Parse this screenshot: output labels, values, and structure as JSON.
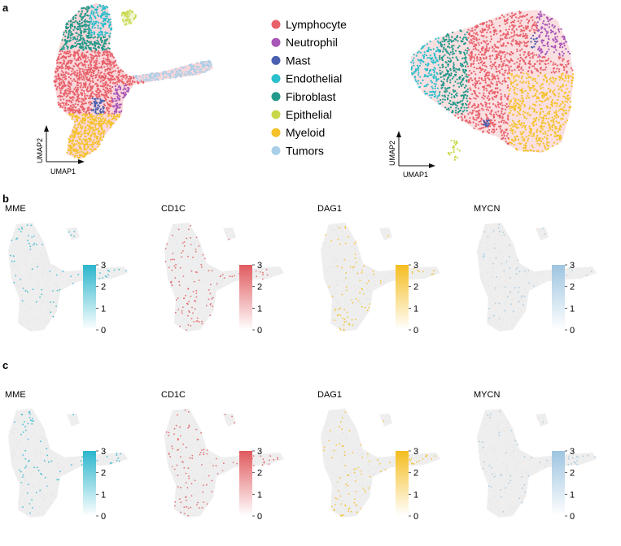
{
  "figure": {
    "panel_labels": {
      "a": "a",
      "b": "b",
      "c": "c"
    },
    "axis_labels": {
      "x": "UMAP1",
      "y": "UMAP2"
    },
    "colorbar_ticks": [
      "3",
      "2",
      "1",
      "0"
    ]
  },
  "legend": [
    {
      "label": "Lymphocyte",
      "color": "#e8606a"
    },
    {
      "label": "Neutrophil",
      "color": "#a855b8"
    },
    {
      "label": "Mast",
      "color": "#4a5fb0"
    },
    {
      "label": "Endothelial",
      "color": "#2bbfcb"
    },
    {
      "label": "Fibroblast",
      "color": "#22998a"
    },
    {
      "label": "Epithelial",
      "color": "#c8d84a"
    },
    {
      "label": "Myeloid",
      "color": "#f5c22a"
    },
    {
      "label": "Tumors",
      "color": "#a9cfe8"
    }
  ],
  "genes_b": [
    {
      "gene": "MME",
      "color": "#2bb5cc"
    },
    {
      "gene": "CD1C",
      "color": "#e05a5e"
    },
    {
      "gene": "DAG1",
      "color": "#f5bd1f"
    },
    {
      "gene": "MYCN",
      "color": "#9dc4e0"
    }
  ],
  "genes_c": [
    {
      "gene": "MME",
      "color": "#2bb5cc"
    },
    {
      "gene": "CD1C",
      "color": "#e05a5e"
    },
    {
      "gene": "DAG1",
      "color": "#f5bd1f"
    },
    {
      "gene": "MYCN",
      "color": "#9dc4e0"
    }
  ],
  "colorbar_range": [
    0,
    3
  ]
}
